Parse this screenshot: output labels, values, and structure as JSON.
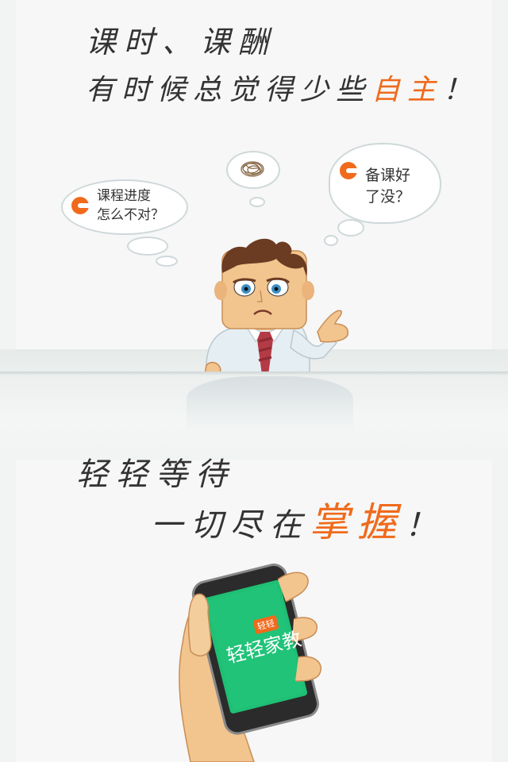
{
  "headline_top": {
    "line1": "课时、课酬",
    "line2_prefix": "有时候总觉得少些",
    "line2_accent": "自主",
    "line2_suffix": "！"
  },
  "bubbles": {
    "left": {
      "line1": "课程进度",
      "line2": "怎么不对？"
    },
    "right": {
      "line1": "备课好",
      "line2": "了没？"
    }
  },
  "headline_bottom": {
    "line1": "轻轻等待",
    "line2_prefix": "一切尽在",
    "line2_accent": "掌握",
    "line2_suffix": "！"
  },
  "phone_screen": {
    "badge": "轻轻",
    "app_name": "轻轻家教"
  },
  "icons": [
    "brand-c-icon",
    "tangled-thought-icon"
  ],
  "colors": {
    "accent": "#f06a1c",
    "screen_green": "#1fbf74",
    "background": "#f6f7f6"
  }
}
